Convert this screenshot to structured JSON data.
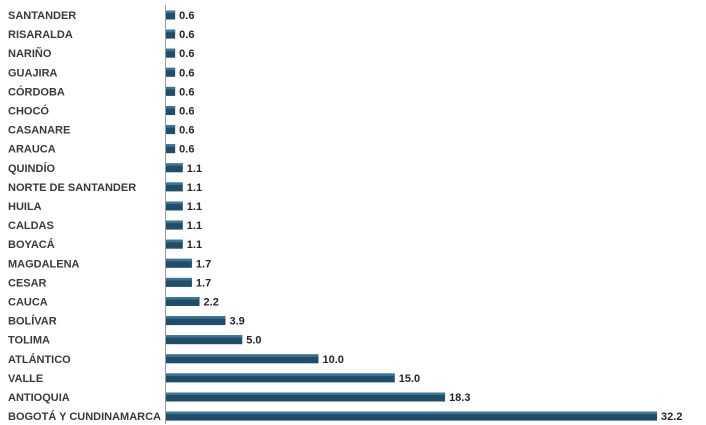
{
  "chart_data": {
    "type": "bar",
    "orientation": "horizontal",
    "categories": [
      "SANTANDER",
      "RISARALDA",
      "NARIÑO",
      "GUAJIRA",
      "CÓRDOBA",
      "CHOCÓ",
      "CASANARE",
      "ARAUCA",
      "QUINDÍO",
      "NORTE DE SANTANDER",
      "HUILA",
      "CALDAS",
      "BOYACÁ",
      "MAGDALENA",
      "CESAR",
      "CAUCA",
      "BOLÍVAR",
      "TOLIMA",
      "ATLÁNTICO",
      "VALLE",
      "ANTIOQUIA",
      "BOGOTÁ Y CUNDINAMARCA"
    ],
    "values": [
      0.6,
      0.6,
      0.6,
      0.6,
      0.6,
      0.6,
      0.6,
      0.6,
      1.1,
      1.1,
      1.1,
      1.1,
      1.1,
      1.7,
      1.7,
      2.2,
      3.9,
      5.0,
      10.0,
      15.0,
      18.3,
      32.2
    ],
    "value_labels": [
      "0.6",
      "0.6",
      "0.6",
      "0.6",
      "0.6",
      "0.6",
      "0.6",
      "0.6",
      "1.1",
      "1.1",
      "1.1",
      "1.1",
      "1.1",
      "1.7",
      "1.7",
      "2.2",
      "3.9",
      "5.0",
      "10.0",
      "15.0",
      "18.3",
      "32.2"
    ],
    "xlim": [
      0,
      32.2
    ],
    "grid": false,
    "legend": "none",
    "colors": {
      "bar": "#1f4e6b",
      "bar_highlight": "#3f7594",
      "axis": "#9a9a9a"
    }
  }
}
